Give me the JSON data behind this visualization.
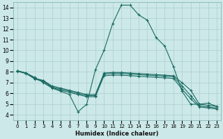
{
  "xlabel": "Humidex (Indice chaleur)",
  "bg_color": "#cce8e8",
  "grid_color": "#aacfcf",
  "line_color": "#1a6b62",
  "xlim": [
    -0.5,
    23.5
  ],
  "ylim": [
    3.5,
    14.5
  ],
  "xticks": [
    0,
    1,
    2,
    3,
    4,
    5,
    6,
    7,
    8,
    9,
    10,
    11,
    12,
    13,
    14,
    15,
    16,
    17,
    18,
    19,
    20,
    21,
    22,
    23
  ],
  "yticks": [
    4,
    5,
    6,
    7,
    8,
    9,
    10,
    11,
    12,
    13,
    14
  ],
  "series": [
    {
      "x": [
        0,
        1,
        2,
        3,
        4,
        5,
        6,
        7,
        8,
        9,
        10,
        11,
        12,
        13,
        14,
        15,
        16,
        17,
        18,
        19,
        20,
        21,
        22,
        23
      ],
      "y": [
        8.1,
        7.9,
        7.5,
        7.0,
        6.5,
        6.2,
        5.9,
        4.3,
        5.0,
        8.2,
        10.0,
        12.5,
        14.2,
        14.2,
        13.3,
        12.8,
        11.2,
        10.4,
        8.5,
        6.2,
        5.0,
        5.0,
        5.1,
        4.8
      ]
    },
    {
      "x": [
        0,
        1,
        2,
        3,
        4,
        5,
        6,
        7,
        8,
        9,
        10,
        11,
        12,
        13,
        14,
        15,
        16,
        17,
        18,
        19,
        20,
        21,
        22,
        23
      ],
      "y": [
        8.1,
        7.9,
        7.4,
        7.2,
        6.7,
        6.5,
        6.3,
        6.1,
        5.9,
        5.9,
        7.9,
        7.95,
        7.95,
        7.9,
        7.85,
        7.8,
        7.75,
        7.7,
        7.65,
        7.0,
        6.3,
        5.0,
        4.9,
        4.8
      ]
    },
    {
      "x": [
        0,
        1,
        2,
        3,
        4,
        5,
        6,
        7,
        8,
        9,
        10,
        11,
        12,
        13,
        14,
        15,
        16,
        17,
        18,
        19,
        20,
        21,
        22,
        23
      ],
      "y": [
        8.1,
        7.9,
        7.4,
        7.2,
        6.6,
        6.4,
        6.2,
        6.0,
        5.8,
        5.8,
        7.8,
        7.85,
        7.85,
        7.8,
        7.75,
        7.7,
        7.65,
        7.6,
        7.55,
        6.7,
        5.8,
        4.85,
        4.75,
        4.65
      ]
    },
    {
      "x": [
        0,
        1,
        2,
        3,
        4,
        5,
        6,
        7,
        8,
        9,
        10,
        11,
        12,
        13,
        14,
        15,
        16,
        17,
        18,
        19,
        20,
        21,
        22,
        23
      ],
      "y": [
        8.05,
        7.85,
        7.35,
        7.1,
        6.55,
        6.3,
        6.1,
        5.9,
        5.7,
        5.7,
        7.65,
        7.7,
        7.7,
        7.65,
        7.6,
        7.55,
        7.5,
        7.45,
        7.4,
        6.4,
        5.5,
        4.75,
        4.65,
        4.55
      ]
    }
  ]
}
